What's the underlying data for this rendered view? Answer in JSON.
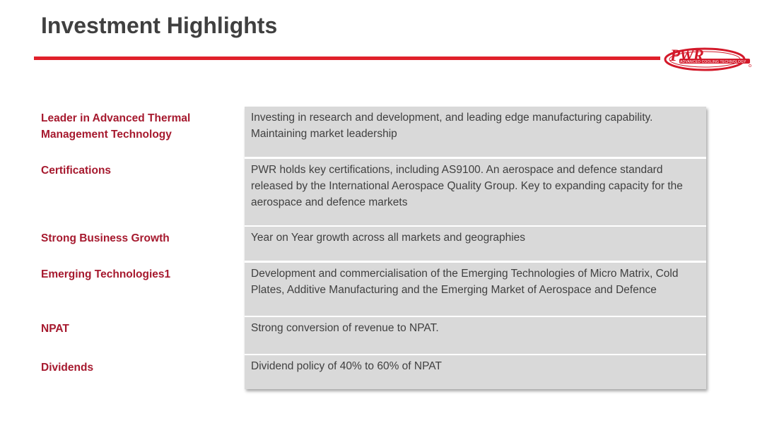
{
  "header": {
    "title": "Investment Highlights",
    "accent_color": "#e0202a",
    "logo": {
      "name": "PWR",
      "tagline": "ADVANCED COOLING TECHNOLOGY",
      "color": "#d3192a"
    }
  },
  "highlights": [
    {
      "label": "Leader in Advanced Thermal Management Technology",
      "text": "Investing in research and development, and leading edge manufacturing capability. Maintaining market leadership"
    },
    {
      "label": "Certifications",
      "text": "PWR holds key certifications, including AS9100. An aerospace and defence standard released by the International Aerospace Quality Group.  Key to expanding capacity for the aerospace and defence markets"
    },
    {
      "label": "Strong Business Growth",
      "text": "Year on Year growth across all markets and geographies"
    },
    {
      "label": "Emerging Technologies1",
      "text": "Development and commercialisation of the Emerging Technologies of Micro Matrix, Cold Plates, Additive Manufacturing and the Emerging Market of Aerospace and Defence"
    },
    {
      "label": "NPAT",
      "text": "Strong conversion of revenue to NPAT."
    },
    {
      "label": "Dividends",
      "text": "Dividend policy of 40% to 60% of NPAT"
    }
  ]
}
